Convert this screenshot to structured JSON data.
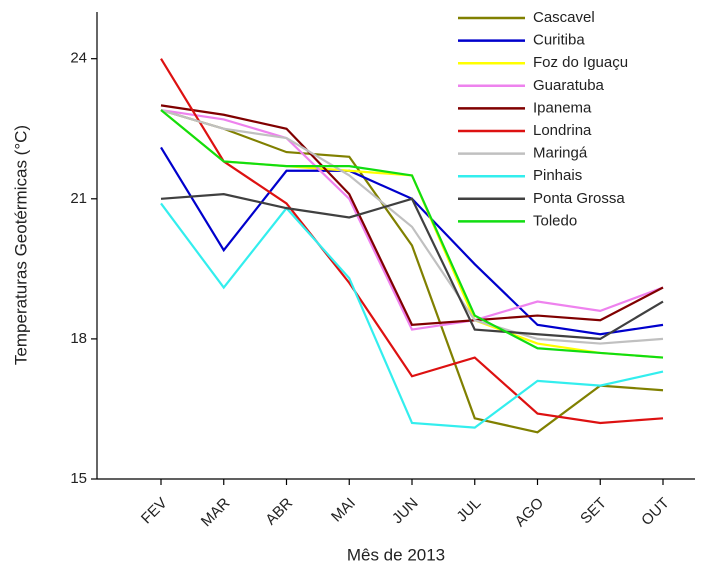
{
  "chart_data": {
    "type": "line",
    "y_label": "Temperaturas Geotérmicas (°C)",
    "x_label": "Mês de 2013",
    "categories": [
      "FEV",
      "MAR",
      "ABR",
      "MAI",
      "JUN",
      "JUL",
      "AGO",
      "SET",
      "OUT"
    ],
    "ylim": [
      15,
      25
    ],
    "yticks": [
      15,
      18,
      21,
      24
    ],
    "legend": "top-right",
    "series": [
      {
        "name": "Cascavel",
        "color": "#808000",
        "values": [
          22.9,
          22.5,
          22.0,
          21.9,
          20.0,
          16.3,
          16.0,
          17.0,
          16.9
        ]
      },
      {
        "name": "Curitiba",
        "color": "#0000cc",
        "values": [
          22.1,
          19.9,
          21.6,
          21.6,
          21.0,
          19.6,
          18.3,
          18.1,
          18.3
        ]
      },
      {
        "name": "Foz do Iguaçu",
        "color": "#ffff00",
        "values": [
          22.9,
          21.8,
          21.7,
          21.6,
          21.5,
          18.4,
          17.9,
          17.7,
          17.6
        ]
      },
      {
        "name": "Guaratuba",
        "color": "#ee82ee",
        "values": [
          22.9,
          22.7,
          22.3,
          21.0,
          18.2,
          18.4,
          18.8,
          18.6,
          19.1
        ]
      },
      {
        "name": "Ipanema",
        "color": "#800000",
        "values": [
          23.0,
          22.8,
          22.5,
          21.1,
          18.3,
          18.4,
          18.5,
          18.4,
          19.1
        ]
      },
      {
        "name": "Londrina",
        "color": "#dd1111",
        "values": [
          24.0,
          21.8,
          20.9,
          19.2,
          17.2,
          17.6,
          16.4,
          16.2,
          16.3
        ]
      },
      {
        "name": "Maringá",
        "color": "#c0c0c0",
        "values": [
          22.9,
          22.5,
          22.3,
          21.5,
          20.4,
          18.4,
          18.0,
          17.9,
          18.0
        ]
      },
      {
        "name": "Pinhais",
        "color": "#33eeee",
        "values": [
          20.9,
          19.1,
          20.8,
          19.3,
          16.2,
          16.1,
          17.1,
          17.0,
          17.3
        ]
      },
      {
        "name": "Ponta Grossa",
        "color": "#404040",
        "values": [
          21.0,
          21.1,
          20.8,
          20.6,
          21.0,
          18.2,
          18.1,
          18.0,
          18.8
        ]
      },
      {
        "name": "Toledo",
        "color": "#11dd11",
        "values": [
          22.9,
          21.8,
          21.7,
          21.7,
          21.5,
          18.5,
          17.8,
          17.7,
          17.6
        ]
      }
    ]
  }
}
